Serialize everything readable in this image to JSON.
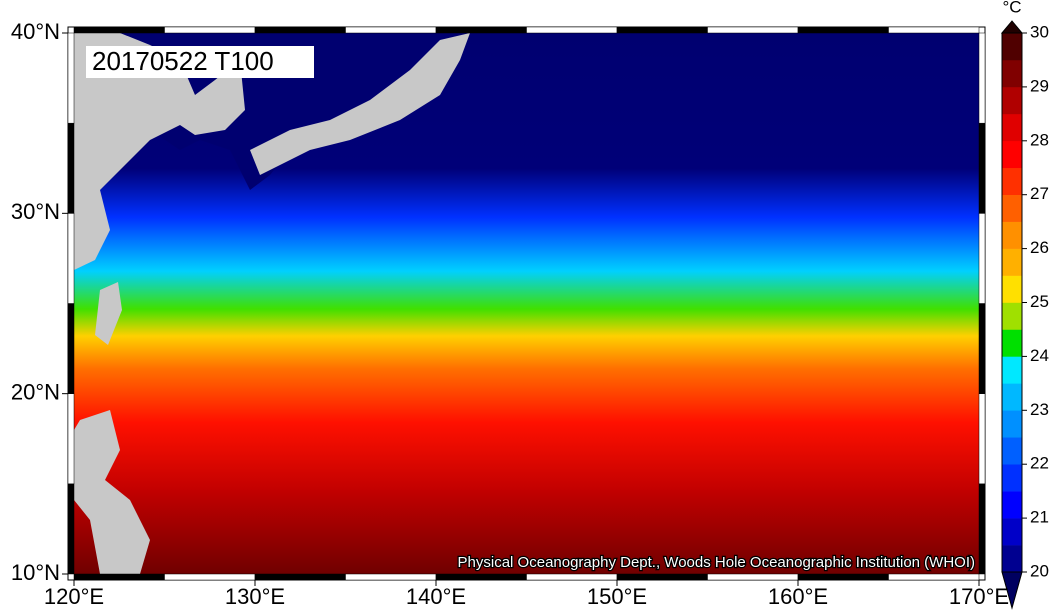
{
  "map": {
    "title": "20170522 T100",
    "credit": "Physical Oceanography Dept., Woods Hole Oceanographic Institution (WHOI)",
    "xlim": [
      120,
      170
    ],
    "ylim": [
      10,
      40
    ],
    "xticks": [
      {
        "value": 120,
        "label": "120°E"
      },
      {
        "value": 130,
        "label": "130°E"
      },
      {
        "value": 140,
        "label": "140°E"
      },
      {
        "value": 150,
        "label": "150°E"
      },
      {
        "value": 160,
        "label": "160°E"
      },
      {
        "value": 170,
        "label": "170°E"
      }
    ],
    "yticks": [
      {
        "value": 10,
        "label": "10°N"
      },
      {
        "value": 20,
        "label": "20°N"
      },
      {
        "value": 30,
        "label": "30°N"
      },
      {
        "value": 40,
        "label": "40°N"
      }
    ],
    "colorbar": {
      "unit": "°C",
      "lim": [
        20,
        30
      ],
      "ticks": [
        20,
        21,
        22,
        23,
        24,
        25,
        26,
        27,
        28,
        29,
        30
      ],
      "colors": [
        "#000090",
        "#0000c8",
        "#0000ff",
        "#0030ff",
        "#0060ff",
        "#0090ff",
        "#00b8ff",
        "#00e8ff",
        "#00e000",
        "#a0e000",
        "#ffe000",
        "#ffb000",
        "#ff9000",
        "#ff6000",
        "#ff3000",
        "#ff0000",
        "#e00000",
        "#b00000",
        "#800000",
        "#500000"
      ],
      "under_color": "#000060",
      "over_color": "#200000"
    }
  }
}
